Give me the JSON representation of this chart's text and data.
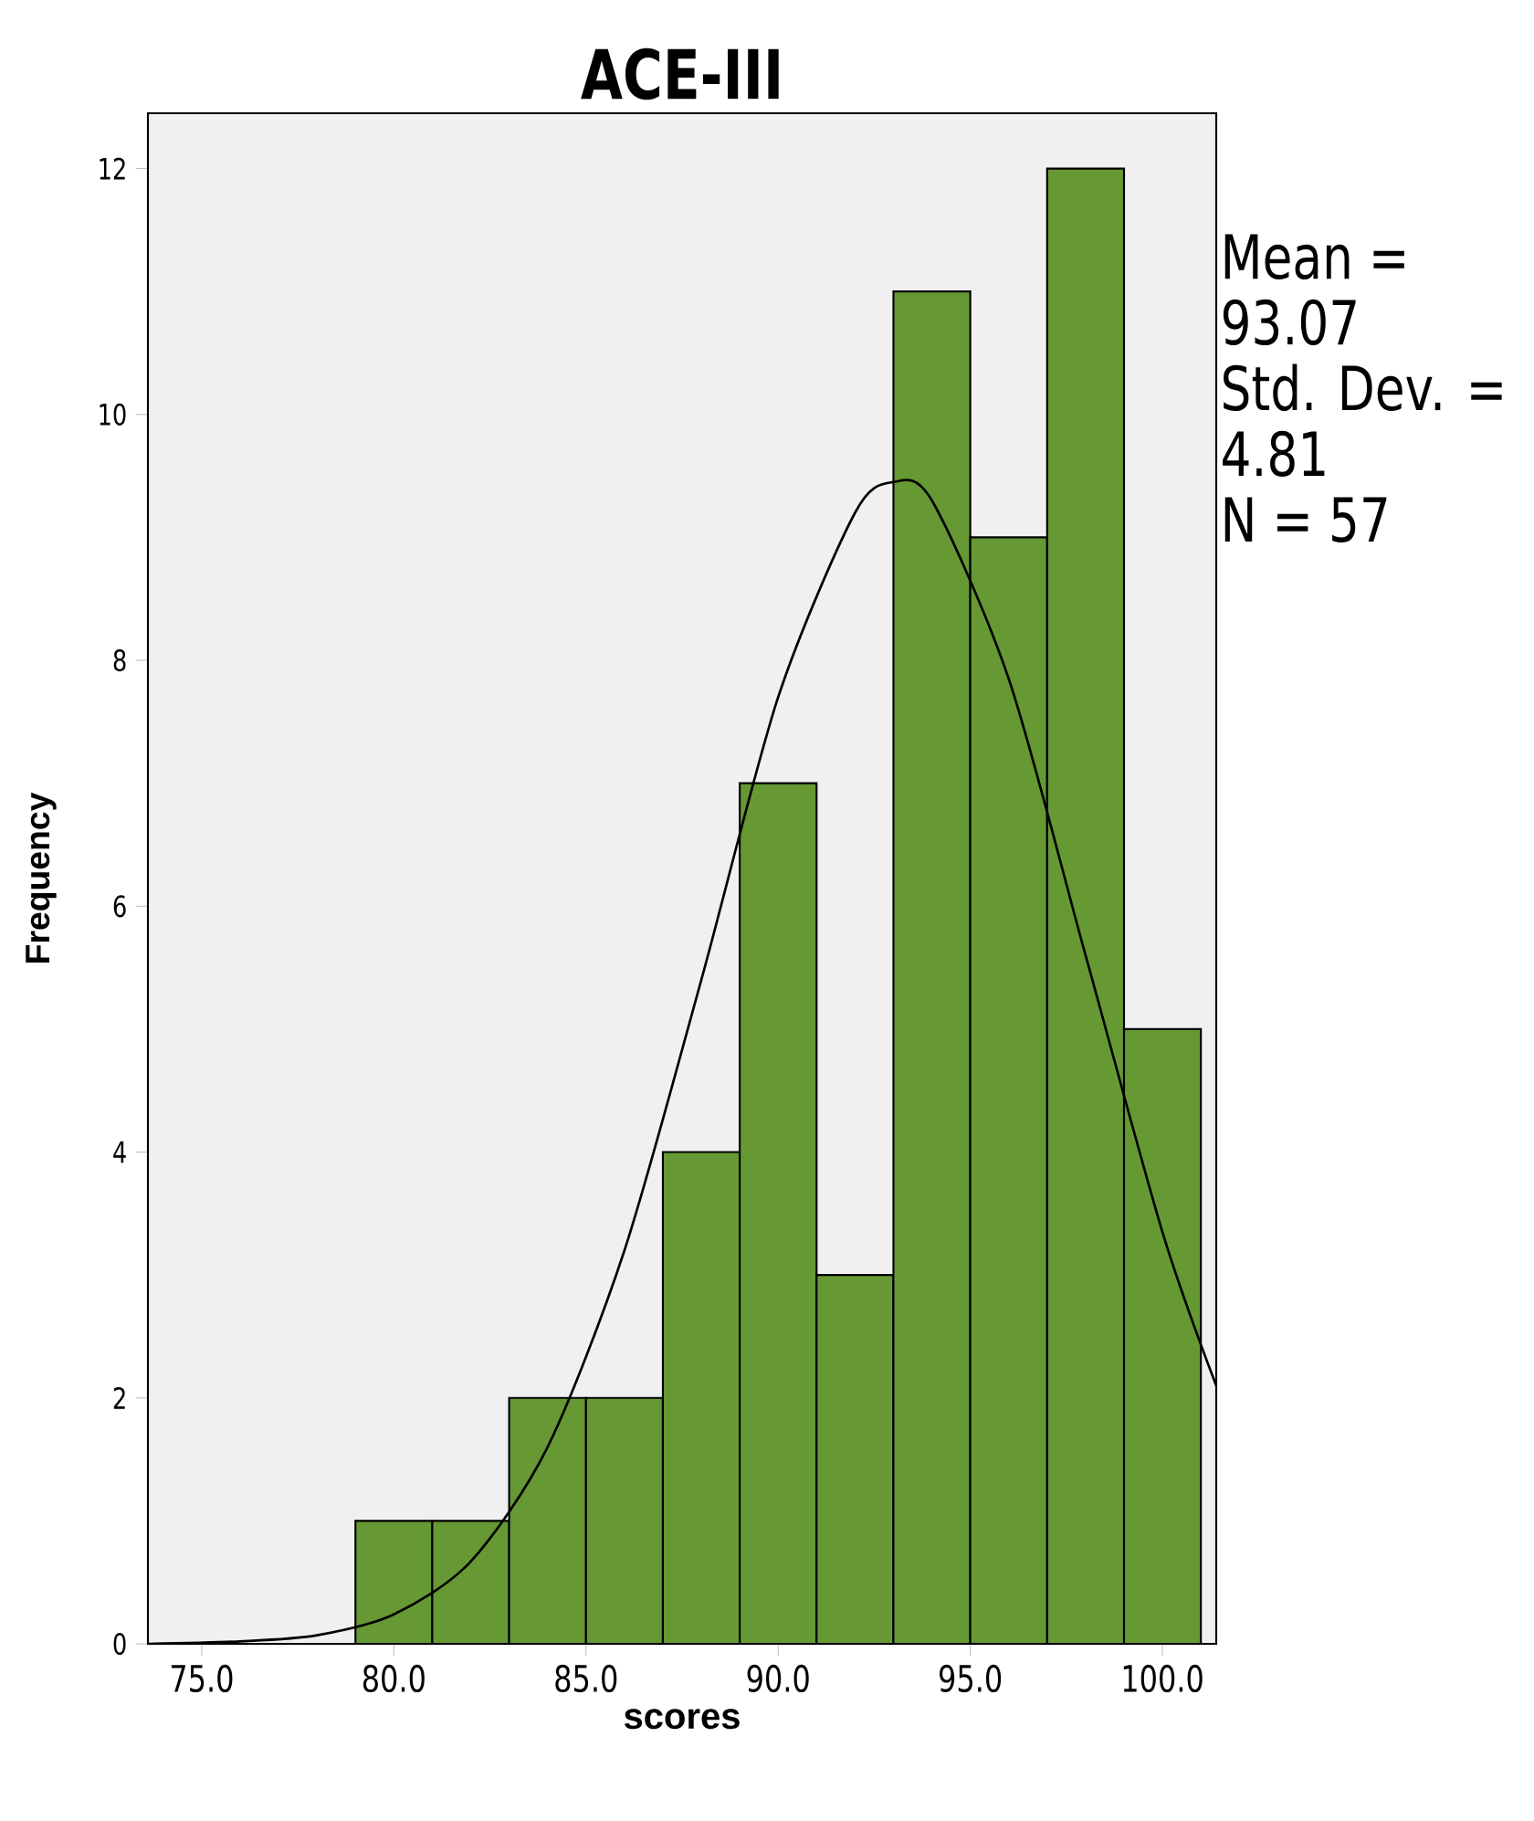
{
  "chart_data": {
    "type": "histogram",
    "title": "ACE-III",
    "xlabel": "scores",
    "ylabel": "Frequency",
    "series": [
      {
        "color": "#669933",
        "bins": [
          79,
          81,
          83,
          85,
          87,
          89,
          91,
          93,
          95,
          97,
          99,
          101
        ],
        "values": [
          1,
          1,
          2,
          2,
          4,
          7,
          3,
          11,
          9,
          12,
          5
        ]
      },
      {
        "type": "line",
        "color": "#000000",
        "marker": "none",
        "x": [
          73.6,
          76,
          78,
          80,
          82,
          84,
          86,
          88,
          90,
          92,
          93,
          94,
          96,
          98,
          100,
          101.4
        ],
        "values": [
          0,
          0.02,
          0.07,
          0.24,
          0.67,
          1.6,
          3.2,
          5.4,
          7.7,
          9.2,
          9.45,
          9.3,
          7.85,
          5.6,
          3.35,
          2.1
        ]
      }
    ],
    "xlim": [
      73.6,
      101.4
    ],
    "ylim": [
      0,
      12.45
    ],
    "xticks": [
      {
        "value": 75,
        "label": "75.0"
      },
      {
        "value": 80,
        "label": "80.0"
      },
      {
        "value": 85,
        "label": "85.0"
      },
      {
        "value": 90,
        "label": "90.0"
      },
      {
        "value": 95,
        "label": "95.0"
      },
      {
        "value": 100,
        "label": "100.0"
      }
    ],
    "yticks": [
      0,
      2,
      4,
      6,
      8,
      10,
      12
    ],
    "grid": false,
    "annotations": [
      "Mean =",
      "93.07",
      "Std. Dev. =",
      "4.81",
      "N = 57"
    ]
  }
}
